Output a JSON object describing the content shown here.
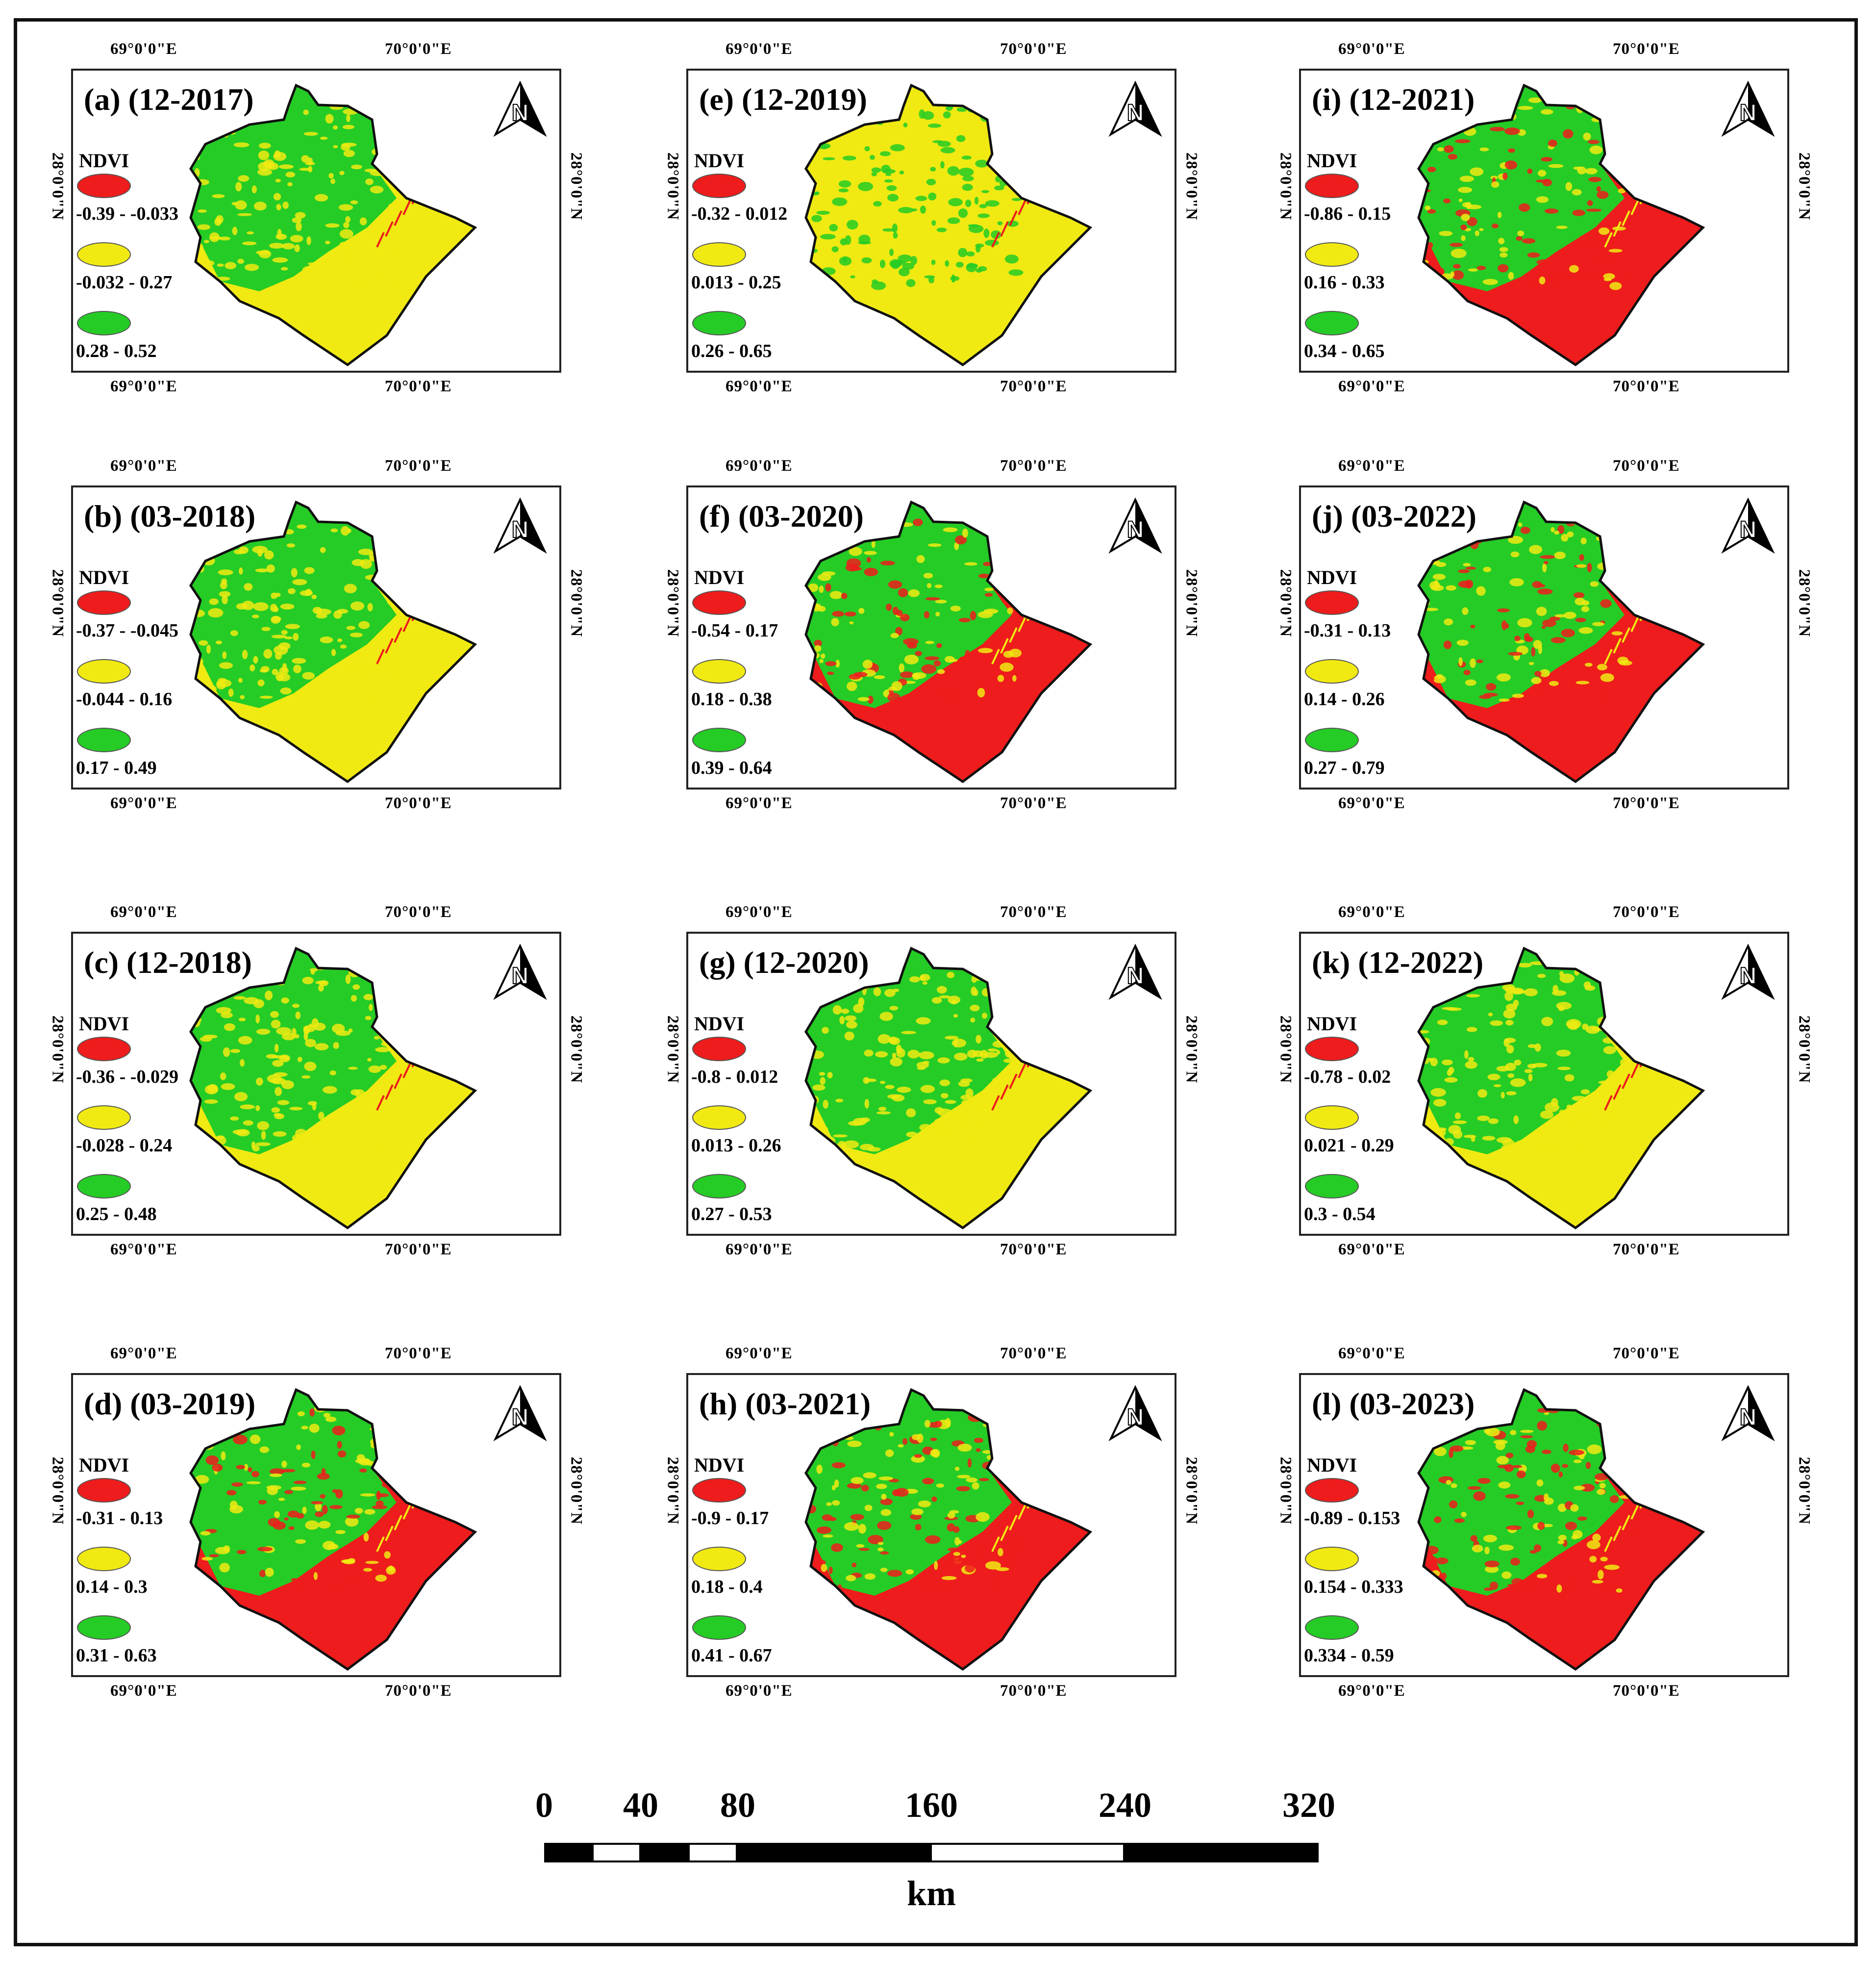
{
  "colors": {
    "red": "#ee1c1c",
    "yellow": "#f0ea12",
    "green": "#25cc25"
  },
  "coords": {
    "lon1": "69°0'0\"E",
    "lon2": "70°0'0\"E",
    "lat": "28°0'0\"N"
  },
  "ndvi_label": "NDVI",
  "panels": [
    {
      "title": "(a) (12-2017)",
      "ranges": [
        "-0.39 - -0.033",
        "-0.032 - 0.27",
        "0.28 - 0.52"
      ],
      "scheme": "green"
    },
    {
      "title": "(e) (12-2019)",
      "ranges": [
        "-0.32 - 0.012",
        "0.013 - 0.25",
        "0.26 - 0.65"
      ],
      "scheme": "yellow"
    },
    {
      "title": "(i) (12-2021)",
      "ranges": [
        "-0.86 - 0.15",
        "0.16 - 0.33",
        "0.34 - 0.65"
      ],
      "scheme": "red"
    },
    {
      "title": "(b) (03-2018)",
      "ranges": [
        "-0.37 - -0.045",
        "-0.044 - 0.16",
        "0.17 - 0.49"
      ],
      "scheme": "green"
    },
    {
      "title": "(f) (03-2020)",
      "ranges": [
        "-0.54 - 0.17",
        "0.18 - 0.38",
        "0.39 - 0.64"
      ],
      "scheme": "red"
    },
    {
      "title": "(j) (03-2022)",
      "ranges": [
        "-0.31 - 0.13",
        "0.14 - 0.26",
        "0.27 - 0.79"
      ],
      "scheme": "red"
    },
    {
      "title": "(c) (12-2018)",
      "ranges": [
        "-0.36 - -0.029",
        "-0.028 - 0.24",
        "0.25 - 0.48"
      ],
      "scheme": "green"
    },
    {
      "title": "(g) (12-2020)",
      "ranges": [
        "-0.8 - 0.012",
        "0.013 - 0.26",
        "0.27 - 0.53"
      ],
      "scheme": "green"
    },
    {
      "title": "(k) (12-2022)",
      "ranges": [
        "-0.78 - 0.02",
        "0.021 - 0.29",
        "0.3 - 0.54"
      ],
      "scheme": "green"
    },
    {
      "title": "(d) (03-2019)",
      "ranges": [
        "-0.31 - 0.13",
        "0.14 - 0.3",
        "0.31 - 0.63"
      ],
      "scheme": "red"
    },
    {
      "title": "(h) (03-2021)",
      "ranges": [
        "-0.9 - 0.17",
        "0.18 - 0.4",
        "0.41 - 0.67"
      ],
      "scheme": "red"
    },
    {
      "title": "(l) (03-2023)",
      "ranges": [
        "-0.89 - 0.153",
        "0.154 - 0.333",
        "0.334 - 0.59"
      ],
      "scheme": "red"
    }
  ],
  "scale": {
    "labels": [
      "0",
      "40",
      "80",
      "160",
      "240",
      "320"
    ],
    "unit": "km"
  }
}
